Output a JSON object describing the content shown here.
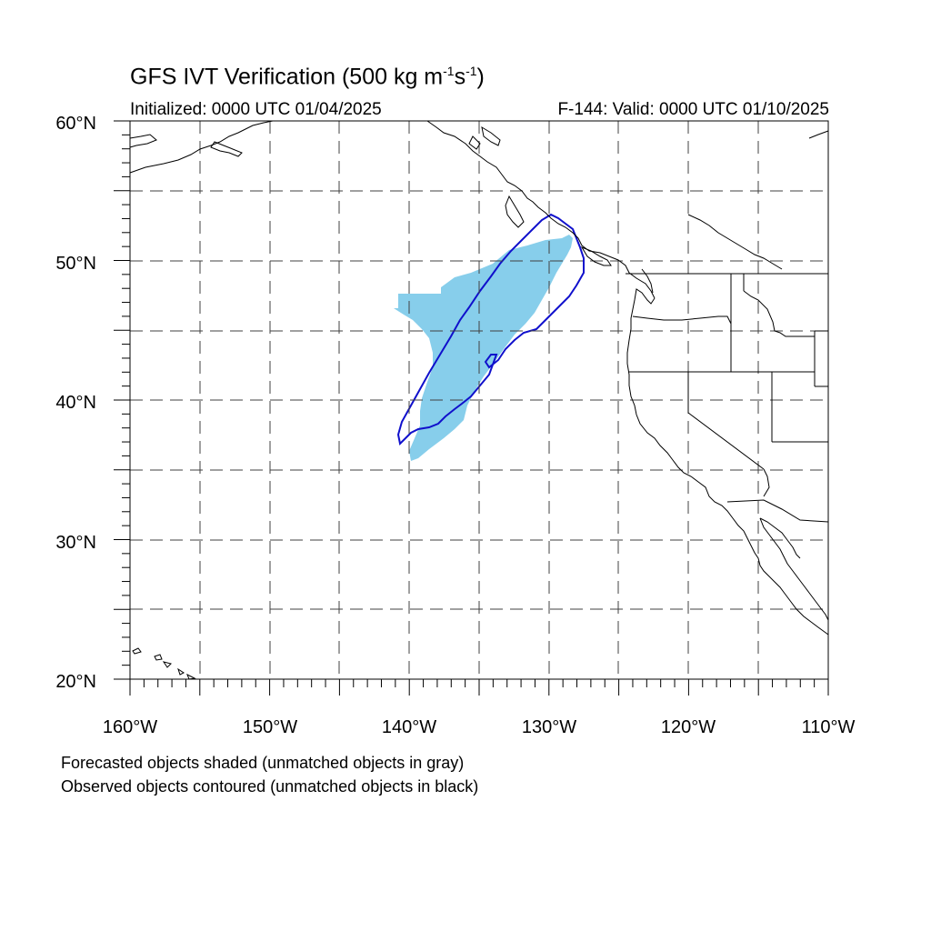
{
  "title": {
    "main": "GFS IVT Verification (500 kg m",
    "exp1": "-1",
    "mid": "s",
    "exp2": "-1",
    "end": ")"
  },
  "initialized": "Initialized: 0000 UTC 01/04/2025",
  "valid": "F-144: Valid: 0000 UTC 01/10/2025",
  "lat_labels": [
    "60°N",
    "50°N",
    "40°N",
    "30°N",
    "20°N"
  ],
  "lon_labels": [
    "160°W",
    "150°W",
    "140°W",
    "130°W",
    "120°W",
    "110°W"
  ],
  "notes": {
    "line1": "Forecasted objects shaded (unmatched objects in gray)",
    "line2": "Observed objects contoured (unmatched objects in black)"
  },
  "colors": {
    "forecast_fill": "#87ceeb",
    "observed_contour": "#1010cc",
    "coastline": "#000000",
    "grid": "#404040"
  }
}
